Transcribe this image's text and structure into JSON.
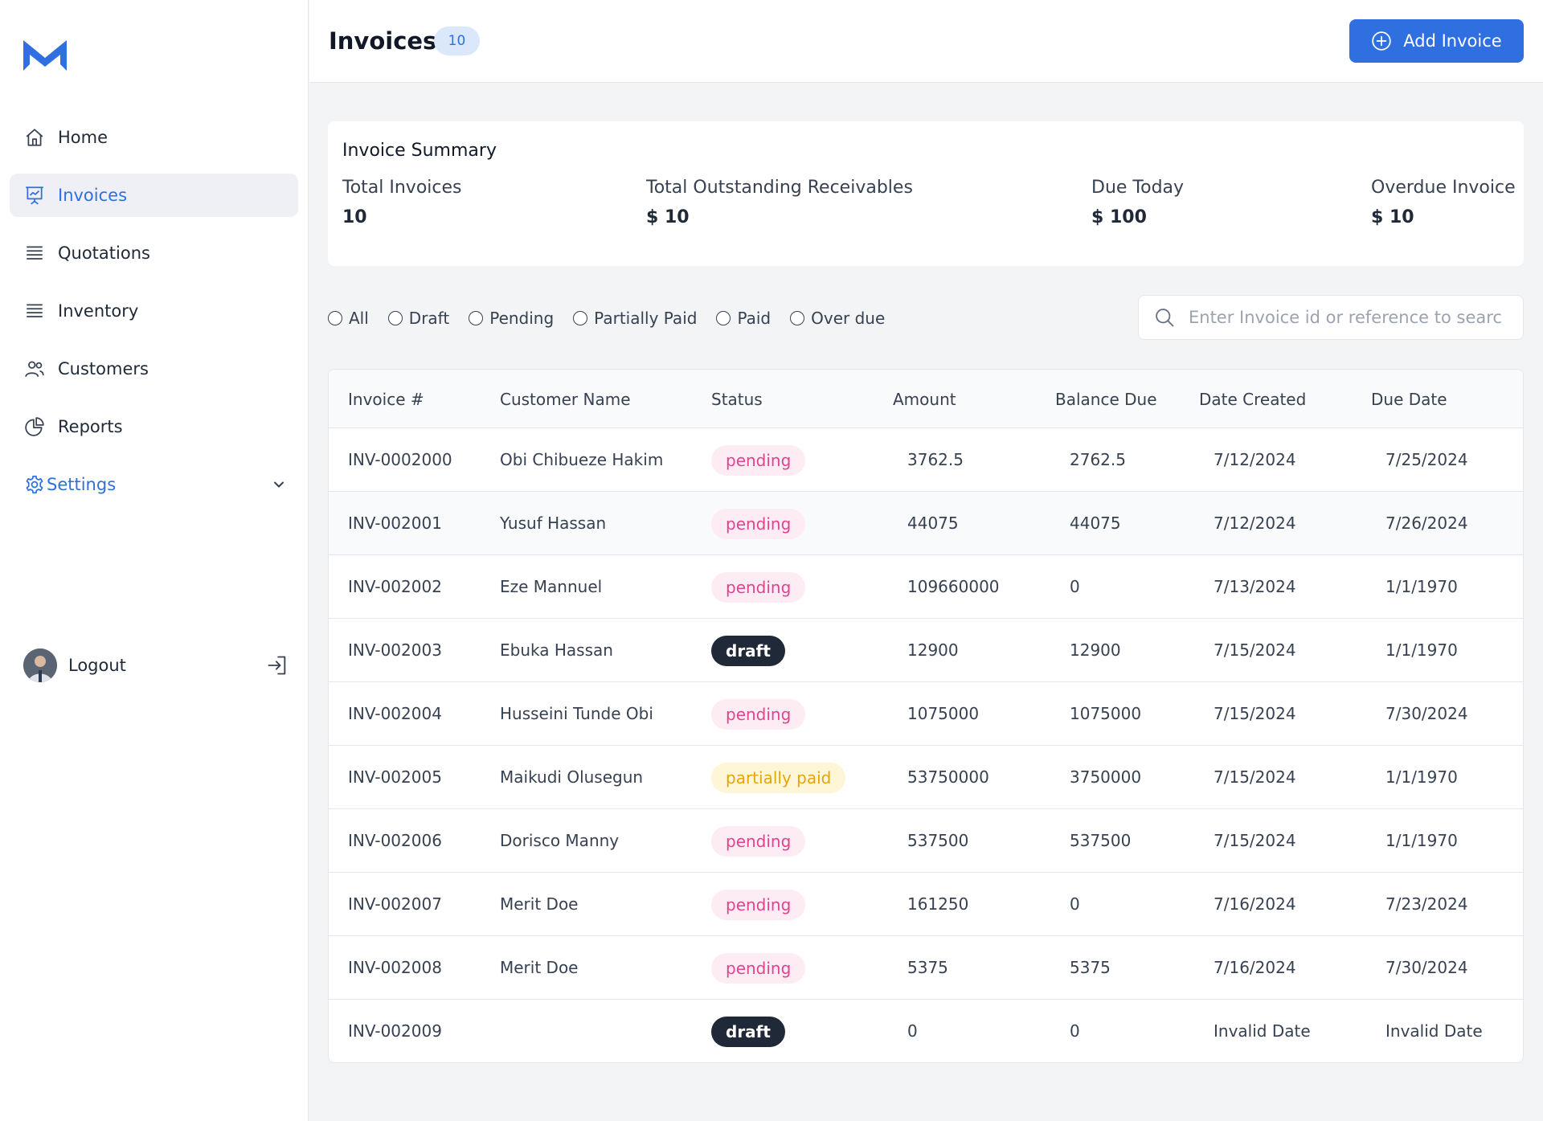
{
  "sidebar": {
    "logo_icon": "m-logo-icon",
    "items": [
      {
        "label": "Home",
        "icon": "home-icon"
      },
      {
        "label": "Invoices",
        "icon": "presentation-chart-icon"
      },
      {
        "label": "Quotations",
        "icon": "list-icon"
      },
      {
        "label": "Inventory",
        "icon": "list-icon"
      },
      {
        "label": "Customers",
        "icon": "users-icon"
      },
      {
        "label": "Reports",
        "icon": "pie-chart-icon"
      },
      {
        "label": "Settings",
        "icon": "gear-icon"
      }
    ],
    "logout_label": "Logout"
  },
  "header": {
    "title": "Invoices",
    "count": "10",
    "add_label": "Add Invoice"
  },
  "summary": {
    "title": "Invoice Summary",
    "stats": [
      {
        "label": "Total Invoices",
        "value": "10"
      },
      {
        "label": "Total Outstanding Receivables",
        "value": "$ 10"
      },
      {
        "label": "Due Today",
        "value": "$ 100"
      },
      {
        "label": "Overdue Invoice",
        "value": "$ 10"
      }
    ]
  },
  "filters": [
    "All",
    "Draft",
    "Pending",
    "Partially Paid",
    "Paid",
    "Over due"
  ],
  "search": {
    "placeholder": "Enter Invoice id or reference to search"
  },
  "table": {
    "columns": [
      "Invoice #",
      "Customer Name",
      "Status",
      "Amount",
      "Balance Due",
      "Date Created",
      "Due Date"
    ],
    "rows": [
      {
        "id": "INV-0002000",
        "customer": "Obi Chibueze Hakim",
        "status": "pending",
        "amount": "3762.5",
        "balance": "2762.5",
        "created": "7/12/2024",
        "due": "7/25/2024"
      },
      {
        "id": "INV-002001",
        "customer": "Yusuf Hassan",
        "status": "pending",
        "amount": "44075",
        "balance": "44075",
        "created": "7/12/2024",
        "due": "7/26/2024"
      },
      {
        "id": "INV-002002",
        "customer": "Eze Mannuel",
        "status": "pending",
        "amount": "109660000",
        "balance": "0",
        "created": "7/13/2024",
        "due": "1/1/1970"
      },
      {
        "id": "INV-002003",
        "customer": "Ebuka Hassan",
        "status": "draft",
        "amount": "12900",
        "balance": "12900",
        "created": "7/15/2024",
        "due": "1/1/1970"
      },
      {
        "id": "INV-002004",
        "customer": "Husseini Tunde Obi",
        "status": "pending",
        "amount": "1075000",
        "balance": "1075000",
        "created": "7/15/2024",
        "due": "7/30/2024"
      },
      {
        "id": "INV-002005",
        "customer": "Maikudi Olusegun",
        "status": "partially paid",
        "amount": "53750000",
        "balance": "3750000",
        "created": "7/15/2024",
        "due": "1/1/1970"
      },
      {
        "id": "INV-002006",
        "customer": "Dorisco Manny",
        "status": "pending",
        "amount": "537500",
        "balance": "537500",
        "created": "7/15/2024",
        "due": "1/1/1970"
      },
      {
        "id": "INV-002007",
        "customer": "Merit Doe",
        "status": "pending",
        "amount": "161250",
        "balance": "0",
        "created": "7/16/2024",
        "due": "7/23/2024"
      },
      {
        "id": "INV-002008",
        "customer": "Merit Doe",
        "status": "pending",
        "amount": "5375",
        "balance": "5375",
        "created": "7/16/2024",
        "due": "7/30/2024"
      },
      {
        "id": "INV-002009",
        "customer": "",
        "status": "draft",
        "amount": "0",
        "balance": "0",
        "created": "Invalid Date",
        "due": "Invalid Date"
      }
    ]
  },
  "colors": {
    "accent": "#2f6fe0",
    "pending_text": "#e0448f",
    "pending_bg": "#fdecf3",
    "draft_bg": "#1f2937",
    "partial_text": "#e5a50a",
    "partial_bg": "#fef6d6"
  }
}
